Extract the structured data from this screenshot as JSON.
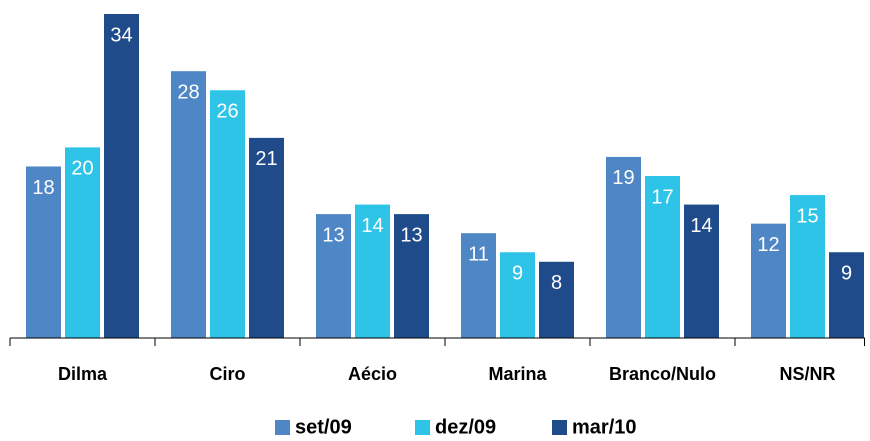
{
  "chart_data": {
    "type": "bar",
    "categories": [
      "Dilma",
      "Ciro",
      "Aécio",
      "Marina",
      "Branco/Nulo",
      "NS/NR"
    ],
    "series": [
      {
        "name": "set/09",
        "color": "#4f86c6",
        "values": [
          18,
          28,
          13,
          11,
          19,
          12
        ]
      },
      {
        "name": "dez/09",
        "color": "#2ec4e8",
        "values": [
          20,
          26,
          14,
          9,
          17,
          15
        ]
      },
      {
        "name": "mar/10",
        "color": "#1f4b8a",
        "values": [
          34,
          21,
          13,
          8,
          14,
          9
        ]
      }
    ]
  }
}
